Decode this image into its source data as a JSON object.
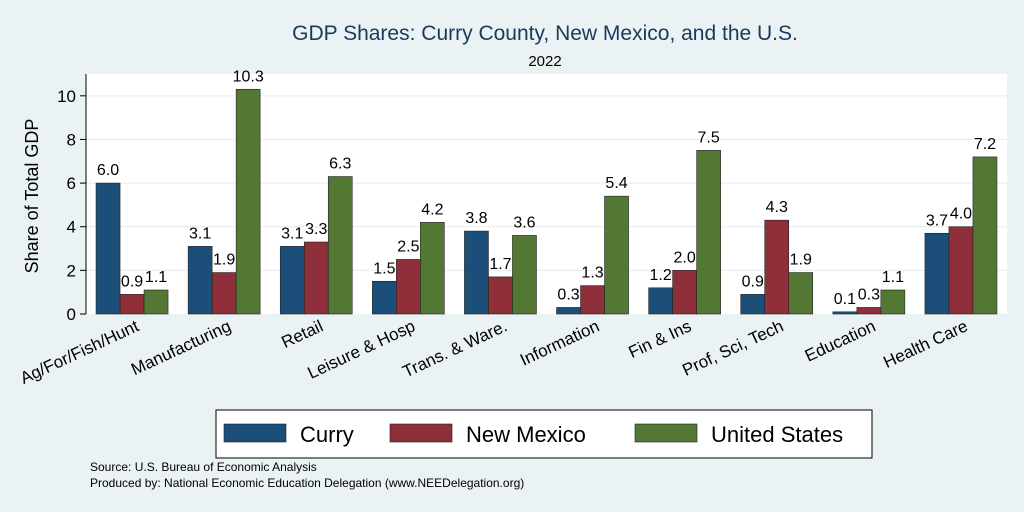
{
  "chart_data": {
    "type": "bar",
    "title": "GDP Shares: Curry County, New Mexico, and the U.S.",
    "subtitle": "2022",
    "ylabel": "Share of Total GDP",
    "xlabel": "",
    "ylim": [
      0,
      11
    ],
    "yticks": [
      "0",
      "2",
      "4",
      "6",
      "8",
      "10"
    ],
    "ytick_values": [
      0,
      2,
      4,
      6,
      8,
      10
    ],
    "categories": [
      "Ag/For/Fish/Hunt",
      "Manufacturing",
      "Retail",
      "Leisure & Hosp",
      "Trans. & Ware.",
      "Information",
      "Fin & Ins",
      "Prof, Sci, Tech",
      "Education",
      "Health Care"
    ],
    "series": [
      {
        "name": "Curry",
        "color": "#1b4f7a",
        "values": [
          6.0,
          3.1,
          3.1,
          1.5,
          3.8,
          0.3,
          1.2,
          0.9,
          0.1,
          3.7
        ],
        "labels": [
          "6.0",
          "3.1",
          "3.1",
          "1.5",
          "3.8",
          "0.3",
          "1.2",
          "0.9",
          "0.1",
          "3.7"
        ]
      },
      {
        "name": "New Mexico",
        "color": "#8f2f3a",
        "values": [
          0.9,
          1.9,
          3.3,
          2.5,
          1.7,
          1.3,
          2.0,
          4.3,
          0.3,
          4.0
        ],
        "labels": [
          "0.9",
          "1.9",
          "3.3",
          "2.5",
          "1.7",
          "1.3",
          "2.0",
          "4.3",
          "0.3",
          "4.0"
        ]
      },
      {
        "name": "United States",
        "color": "#527834",
        "values": [
          1.1,
          10.3,
          6.3,
          4.2,
          3.6,
          5.4,
          7.5,
          1.9,
          1.1,
          7.2
        ],
        "labels": [
          "1.1",
          "10.3",
          "6.3",
          "4.2",
          "3.6",
          "5.4",
          "7.5",
          "1.9",
          "1.1",
          "7.2"
        ]
      }
    ],
    "legend": {
      "position": "bottom",
      "items": [
        "Curry",
        "New Mexico",
        "United States"
      ]
    },
    "grid": true,
    "notes": [
      "Source: U.S. Bureau of Economic Analysis",
      "Produced by: National Economic Education Delegation (www.NEEDelegation.org)"
    ]
  }
}
